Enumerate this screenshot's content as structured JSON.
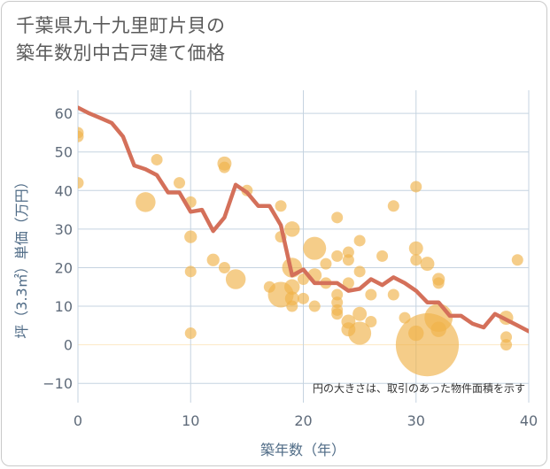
{
  "title_lines": [
    "千葉県九十九里町片貝の",
    "築年数別中古戸建て価格"
  ],
  "note": "円の大きさは、取引のあった物件面積を示す",
  "colors": {
    "bubble": "#f0b24a",
    "line": "#d4705a",
    "grid": "#c5d3e0",
    "zero_line": "#fde9c4",
    "plot_bg": "#ffffff"
  },
  "chart_data": {
    "type": "scatter",
    "xlabel": "築年数（年）",
    "ylabel": "坪（3.3㎡）単価（万円）",
    "xlim": [
      0,
      40
    ],
    "ylim": [
      -15,
      66
    ],
    "x_ticks": [
      0,
      10,
      20,
      30,
      40
    ],
    "y_ticks": [
      -10,
      0,
      10,
      20,
      30,
      40,
      50,
      60
    ],
    "grid": true,
    "bubbles": [
      {
        "x": 0,
        "y": 55,
        "s": 1
      },
      {
        "x": 0,
        "y": 54,
        "s": 1
      },
      {
        "x": 0,
        "y": 42,
        "s": 1
      },
      {
        "x": 6,
        "y": 37,
        "s": 3
      },
      {
        "x": 7,
        "y": 48,
        "s": 1
      },
      {
        "x": 9,
        "y": 42,
        "s": 1
      },
      {
        "x": 10,
        "y": 37,
        "s": 1
      },
      {
        "x": 10,
        "y": 28,
        "s": 1.2
      },
      {
        "x": 10,
        "y": 19,
        "s": 1
      },
      {
        "x": 10,
        "y": 3,
        "s": 1
      },
      {
        "x": 12,
        "y": 22,
        "s": 1.2
      },
      {
        "x": 13,
        "y": 47,
        "s": 1.5
      },
      {
        "x": 13,
        "y": 46,
        "s": 1
      },
      {
        "x": 13,
        "y": 20,
        "s": 1
      },
      {
        "x": 14,
        "y": 17,
        "s": 3
      },
      {
        "x": 15,
        "y": 40,
        "s": 1
      },
      {
        "x": 17,
        "y": 15,
        "s": 1
      },
      {
        "x": 18,
        "y": 36,
        "s": 1
      },
      {
        "x": 18,
        "y": 28,
        "s": 1
      },
      {
        "x": 18,
        "y": 13,
        "s": 5
      },
      {
        "x": 19,
        "y": 30,
        "s": 1.8
      },
      {
        "x": 19,
        "y": 20,
        "s": 3
      },
      {
        "x": 19,
        "y": 15,
        "s": 1.8
      },
      {
        "x": 19,
        "y": 12,
        "s": 1.5
      },
      {
        "x": 19,
        "y": 10,
        "s": 1
      },
      {
        "x": 20,
        "y": 12,
        "s": 1
      },
      {
        "x": 20,
        "y": 17,
        "s": 1
      },
      {
        "x": 21,
        "y": 25,
        "s": 4
      },
      {
        "x": 21,
        "y": 18,
        "s": 1.5
      },
      {
        "x": 21,
        "y": 10,
        "s": 1
      },
      {
        "x": 22,
        "y": 21,
        "s": 1
      },
      {
        "x": 22,
        "y": 16,
        "s": 1
      },
      {
        "x": 23,
        "y": 33,
        "s": 1
      },
      {
        "x": 23,
        "y": 23,
        "s": 1
      },
      {
        "x": 23,
        "y": 13,
        "s": 1
      },
      {
        "x": 23,
        "y": 11,
        "s": 1
      },
      {
        "x": 23,
        "y": 9,
        "s": 1
      },
      {
        "x": 23,
        "y": 8,
        "s": 1
      },
      {
        "x": 24,
        "y": 24,
        "s": 1
      },
      {
        "x": 24,
        "y": 22,
        "s": 1
      },
      {
        "x": 24,
        "y": 16,
        "s": 1
      },
      {
        "x": 24,
        "y": 6,
        "s": 1.5
      },
      {
        "x": 24,
        "y": 4,
        "s": 1.5
      },
      {
        "x": 25,
        "y": 27,
        "s": 1
      },
      {
        "x": 25,
        "y": 19,
        "s": 1
      },
      {
        "x": 25,
        "y": 8,
        "s": 1.5
      },
      {
        "x": 25,
        "y": 3,
        "s": 4
      },
      {
        "x": 26,
        "y": 13,
        "s": 1
      },
      {
        "x": 26,
        "y": 6,
        "s": 1
      },
      {
        "x": 27,
        "y": 23,
        "s": 1
      },
      {
        "x": 28,
        "y": 36,
        "s": 1
      },
      {
        "x": 28,
        "y": 13,
        "s": 1
      },
      {
        "x": 29,
        "y": 7,
        "s": 1
      },
      {
        "x": 30,
        "y": 41,
        "s": 1
      },
      {
        "x": 30,
        "y": 25,
        "s": 1.5
      },
      {
        "x": 30,
        "y": 22,
        "s": 1
      },
      {
        "x": 30,
        "y": 3,
        "s": 1.8
      },
      {
        "x": 31,
        "y": 21,
        "s": 1.5
      },
      {
        "x": 31,
        "y": 0,
        "s": 30
      },
      {
        "x": 32,
        "y": 17,
        "s": 1.2
      },
      {
        "x": 32,
        "y": 16,
        "s": 1
      },
      {
        "x": 32,
        "y": 7,
        "s": 6
      },
      {
        "x": 32,
        "y": 4,
        "s": 1.8
      },
      {
        "x": 38,
        "y": 7,
        "s": 1.5
      },
      {
        "x": 38,
        "y": 2,
        "s": 1
      },
      {
        "x": 38,
        "y": 0,
        "s": 1
      },
      {
        "x": 39,
        "y": 22,
        "s": 1
      }
    ],
    "series": [
      {
        "x": [
          0,
          1,
          2,
          3,
          4,
          5,
          6,
          7,
          8,
          9,
          10,
          11,
          12,
          13,
          14,
          15,
          16,
          17,
          18,
          19,
          20,
          21,
          22,
          23,
          24,
          25,
          26,
          27,
          28,
          29,
          30,
          31,
          32,
          33,
          34,
          35,
          36,
          37,
          38,
          39,
          40
        ],
        "values": [
          61.5,
          60,
          58.8,
          57.5,
          54,
          46.5,
          45.5,
          44,
          39.5,
          39.5,
          34.5,
          35,
          29.5,
          33,
          41.5,
          39.5,
          36,
          36,
          31,
          18,
          19.5,
          16,
          16,
          16,
          14,
          14.5,
          17,
          15.5,
          17.5,
          16,
          14,
          11,
          11,
          7.5,
          7.5,
          5.5,
          4.5,
          8,
          6.5,
          5,
          3.5
        ]
      }
    ]
  }
}
